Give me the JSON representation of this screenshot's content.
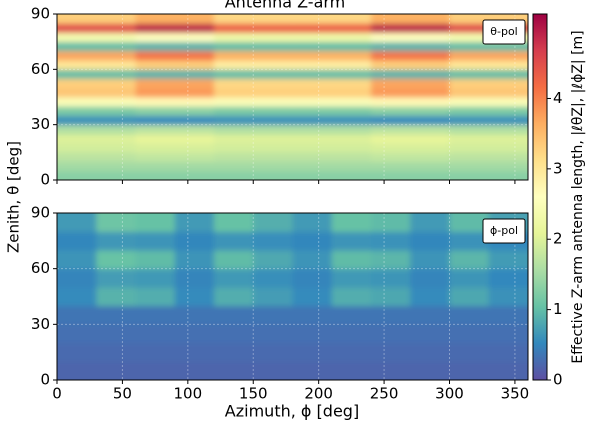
{
  "chart_data": [
    {
      "type": "heatmap",
      "title": "Antenna Z-arm",
      "annotation": "θ-pol",
      "ylabel": "Zenith, θ [deg]",
      "x_bins": [
        0,
        60,
        120,
        180,
        240,
        300,
        360
      ],
      "y_bins": [
        0,
        5,
        10,
        15,
        20,
        25,
        30,
        35,
        40,
        45,
        50,
        55,
        60,
        65,
        70,
        75,
        80,
        85,
        90
      ],
      "values": [
        [
          1.3,
          1.3,
          1.3,
          1.3,
          1.3,
          1.3
        ],
        [
          1.5,
          1.5,
          1.5,
          1.5,
          1.5,
          1.5
        ],
        [
          1.7,
          1.75,
          1.7,
          1.7,
          1.75,
          1.7
        ],
        [
          1.9,
          1.95,
          1.9,
          1.9,
          1.95,
          1.9
        ],
        [
          2.0,
          2.1,
          2.0,
          2.0,
          2.1,
          2.0
        ],
        [
          1.6,
          1.7,
          1.6,
          1.6,
          1.7,
          1.6
        ],
        [
          0.6,
          0.55,
          0.6,
          0.6,
          0.55,
          0.6
        ],
        [
          1.2,
          1.3,
          1.2,
          1.2,
          1.3,
          1.2
        ],
        [
          2.5,
          2.7,
          2.5,
          2.5,
          2.7,
          2.5
        ],
        [
          3.4,
          3.8,
          3.3,
          3.3,
          3.8,
          3.4
        ],
        [
          3.3,
          3.7,
          3.2,
          3.2,
          3.7,
          3.3
        ],
        [
          1.0,
          0.9,
          1.0,
          1.0,
          0.9,
          1.0
        ],
        [
          3.0,
          3.3,
          2.9,
          2.9,
          3.3,
          3.0
        ],
        [
          3.7,
          4.1,
          3.6,
          3.6,
          4.1,
          3.7
        ],
        [
          1.0,
          0.9,
          1.0,
          1.0,
          0.9,
          1.0
        ],
        [
          2.4,
          2.6,
          2.3,
          2.3,
          2.6,
          2.4
        ],
        [
          4.5,
          4.9,
          4.3,
          4.3,
          4.9,
          4.5
        ],
        [
          3.3,
          3.6,
          3.2,
          3.2,
          3.6,
          3.3
        ]
      ],
      "xlim": [
        0,
        360
      ],
      "xticks": [
        0,
        50,
        100,
        150,
        200,
        250,
        300,
        350
      ],
      "ylim": [
        0,
        90
      ],
      "yticks": [
        0,
        30,
        60,
        90
      ],
      "grid": true,
      "colorbar": {
        "label": "Effective Z-arm antenna length, |ℓθZ|, |ℓϕZ| [m]",
        "lim": [
          0,
          5.2
        ],
        "ticks": [
          0,
          1,
          2,
          3,
          4
        ],
        "colormap": "Spectral_r"
      }
    },
    {
      "type": "heatmap",
      "annotation": "ϕ-pol",
      "xlabel": "Azimuth, ϕ [deg]",
      "x_bins": [
        0,
        30,
        60,
        90,
        120,
        150,
        180,
        210,
        240,
        270,
        300,
        330,
        360
      ],
      "y_bins": [
        0,
        10,
        20,
        30,
        40,
        50,
        60,
        70,
        80,
        90
      ],
      "values": [
        [
          0.2,
          0.2,
          0.2,
          0.2,
          0.2,
          0.2,
          0.2,
          0.2,
          0.2,
          0.2,
          0.2,
          0.2
        ],
        [
          0.25,
          0.25,
          0.25,
          0.25,
          0.25,
          0.25,
          0.25,
          0.25,
          0.25,
          0.25,
          0.25,
          0.25
        ],
        [
          0.3,
          0.3,
          0.3,
          0.3,
          0.3,
          0.3,
          0.3,
          0.3,
          0.3,
          0.3,
          0.3,
          0.3
        ],
        [
          0.35,
          0.35,
          0.35,
          0.35,
          0.35,
          0.35,
          0.35,
          0.35,
          0.35,
          0.35,
          0.35,
          0.35
        ],
        [
          0.55,
          0.9,
          0.85,
          0.55,
          0.85,
          0.7,
          0.55,
          0.85,
          0.8,
          0.55,
          0.8,
          0.6
        ],
        [
          0.49,
          0.7,
          0.67,
          0.49,
          0.67,
          0.58,
          0.49,
          0.67,
          0.64,
          0.49,
          0.64,
          0.52
        ],
        [
          0.63,
          1.05,
          0.99,
          0.63,
          0.99,
          0.81,
          0.63,
          0.99,
          0.93,
          0.63,
          0.93,
          0.69
        ],
        [
          0.51,
          0.65,
          0.63,
          0.51,
          0.63,
          0.57,
          0.51,
          0.63,
          0.61,
          0.51,
          0.61,
          0.53
        ],
        [
          0.68,
          1.1,
          1.04,
          0.68,
          1.04,
          0.86,
          0.68,
          1.04,
          0.98,
          0.68,
          0.98,
          0.74
        ]
      ],
      "xlim": [
        0,
        360
      ],
      "xticks": [
        0,
        50,
        100,
        150,
        200,
        250,
        300,
        350
      ],
      "ylim": [
        0,
        90
      ],
      "yticks": [
        0,
        30,
        60,
        90
      ],
      "grid": true
    }
  ]
}
